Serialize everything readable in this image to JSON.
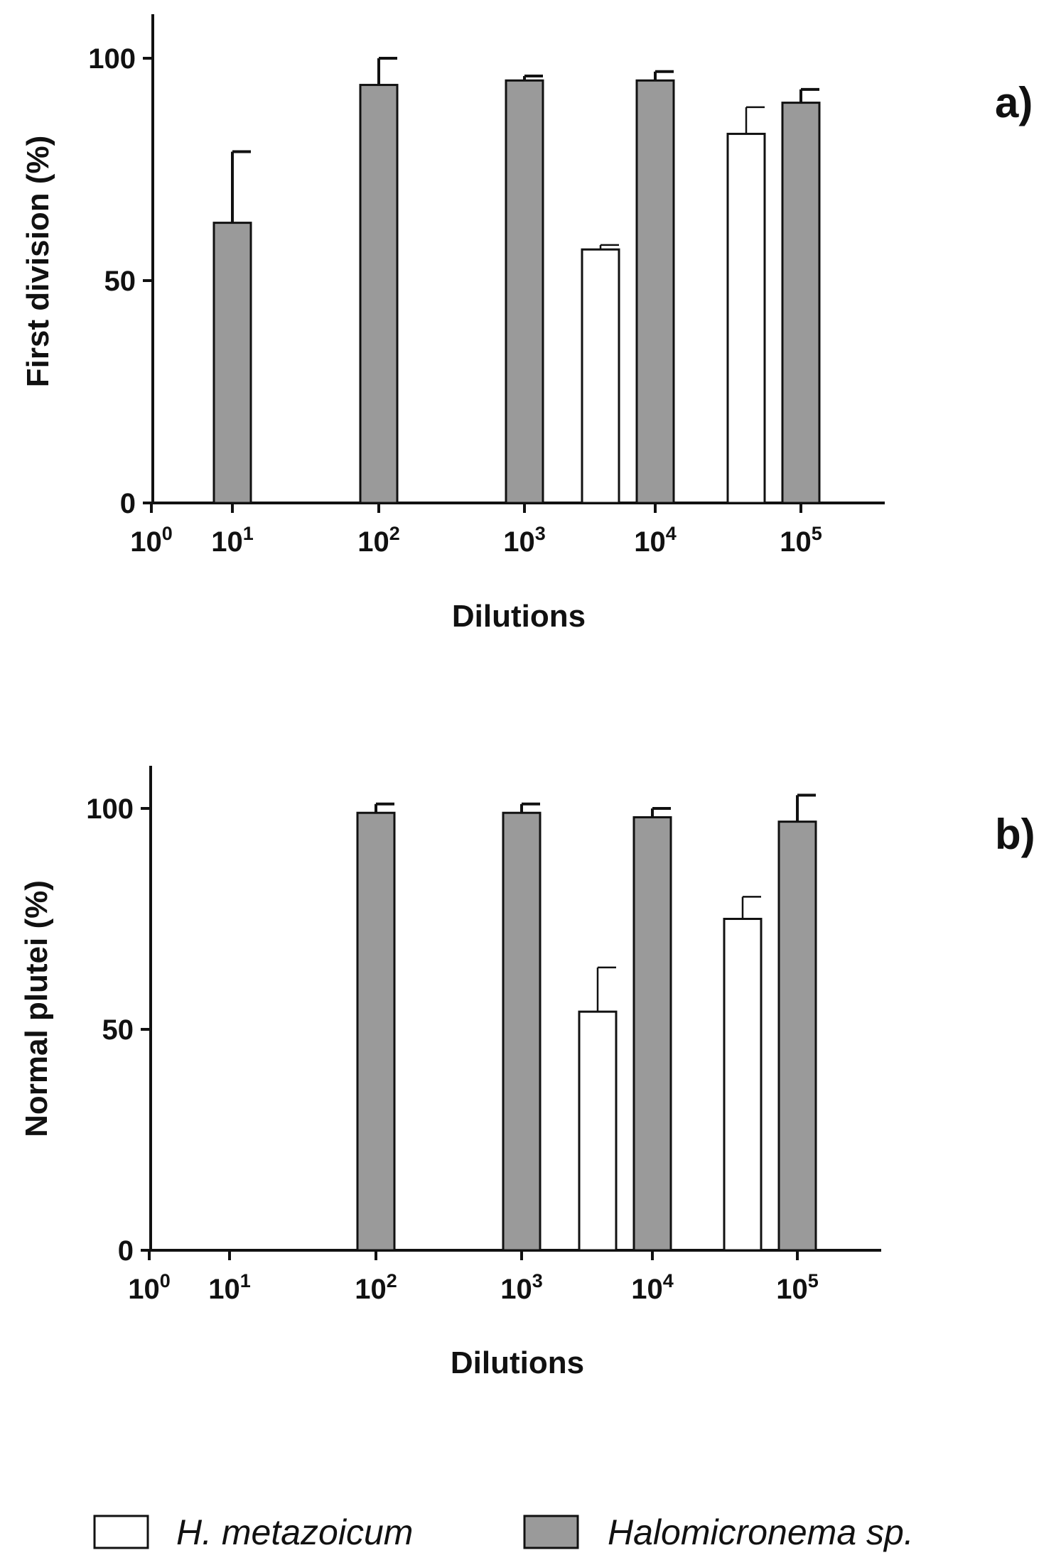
{
  "chart_data": [
    {
      "type": "bar",
      "panel_label": "a)",
      "xlabel": "Dilutions",
      "ylabel": "First division (%)",
      "ylim": [
        0,
        100
      ],
      "yticks": [
        0,
        50,
        100
      ],
      "x_tick_labels": [
        {
          "base": "10",
          "exp": "0"
        },
        {
          "base": "10",
          "exp": "1"
        },
        {
          "base": "10",
          "exp": "2"
        },
        {
          "base": "10",
          "exp": "3"
        },
        {
          "base": "10",
          "exp": "4"
        },
        {
          "base": "10",
          "exp": "5"
        }
      ],
      "categories": [
        "10^1",
        "10^2",
        "10^3",
        "10^4",
        "10^5"
      ],
      "series": [
        {
          "name": "H. metazoicum",
          "color": "#ffffff",
          "values": [
            null,
            null,
            null,
            57,
            83
          ],
          "errors": [
            null,
            null,
            null,
            1,
            6
          ]
        },
        {
          "name": "Halomicronema sp.",
          "color": "#9a9a9a",
          "values": [
            63,
            94,
            95,
            95,
            90
          ],
          "errors": [
            16,
            6,
            1,
            2,
            3
          ]
        }
      ]
    },
    {
      "type": "bar",
      "panel_label": "b)",
      "xlabel": "Dilutions",
      "ylabel": "Normal plutei (%)",
      "ylim": [
        0,
        100
      ],
      "yticks": [
        0,
        50,
        100
      ],
      "x_tick_labels": [
        {
          "base": "10",
          "exp": "0"
        },
        {
          "base": "10",
          "exp": "1"
        },
        {
          "base": "10",
          "exp": "2"
        },
        {
          "base": "10",
          "exp": "3"
        },
        {
          "base": "10",
          "exp": "4"
        },
        {
          "base": "10",
          "exp": "5"
        }
      ],
      "categories": [
        "10^1",
        "10^2",
        "10^3",
        "10^4",
        "10^5"
      ],
      "series": [
        {
          "name": "H. metazoicum",
          "color": "#ffffff",
          "values": [
            null,
            null,
            null,
            54,
            75
          ],
          "errors": [
            null,
            null,
            null,
            10,
            5
          ]
        },
        {
          "name": "Halomicronema sp.",
          "color": "#9a9a9a",
          "values": [
            null,
            99,
            99,
            98,
            97
          ],
          "errors": [
            null,
            2,
            2,
            2,
            6
          ]
        }
      ]
    }
  ],
  "legend": [
    {
      "label": "H. metazoicum",
      "color": "#ffffff"
    },
    {
      "label": "Halomicronema sp.",
      "color": "#9a9a9a"
    }
  ]
}
